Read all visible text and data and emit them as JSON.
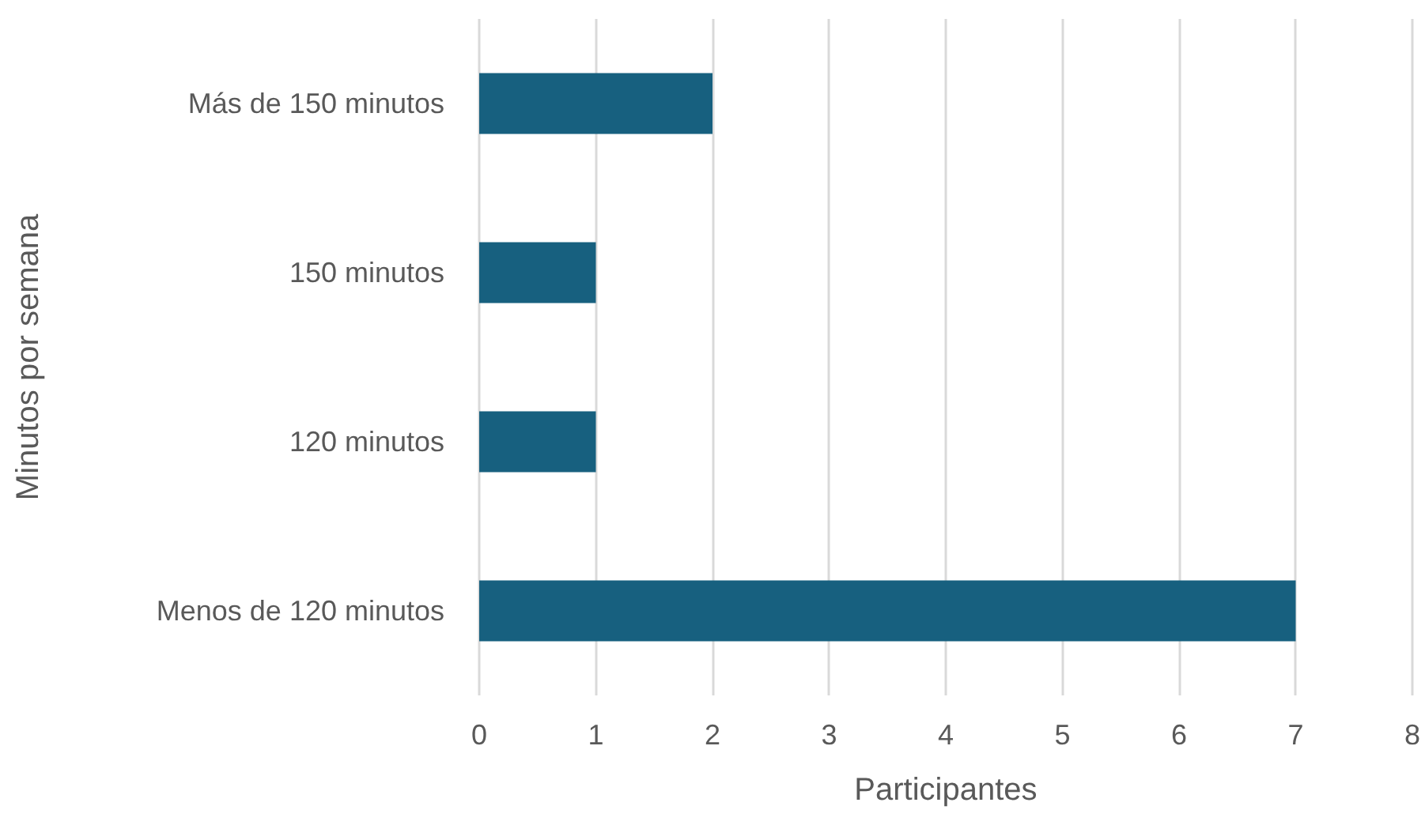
{
  "chart_data": {
    "type": "bar",
    "orientation": "horizontal",
    "categories": [
      "Más de 150 minutos",
      "150 minutos",
      "120 minutos",
      "Menos de 120 minutos"
    ],
    "values": [
      2,
      1,
      1,
      7
    ],
    "color": "#17607f",
    "xlim": [
      0,
      8
    ],
    "xticks": [
      0,
      1,
      2,
      3,
      4,
      5,
      6,
      7,
      8
    ],
    "xlabel": "Participantes",
    "ylabel": "Minutos por semana",
    "grid": "x"
  }
}
